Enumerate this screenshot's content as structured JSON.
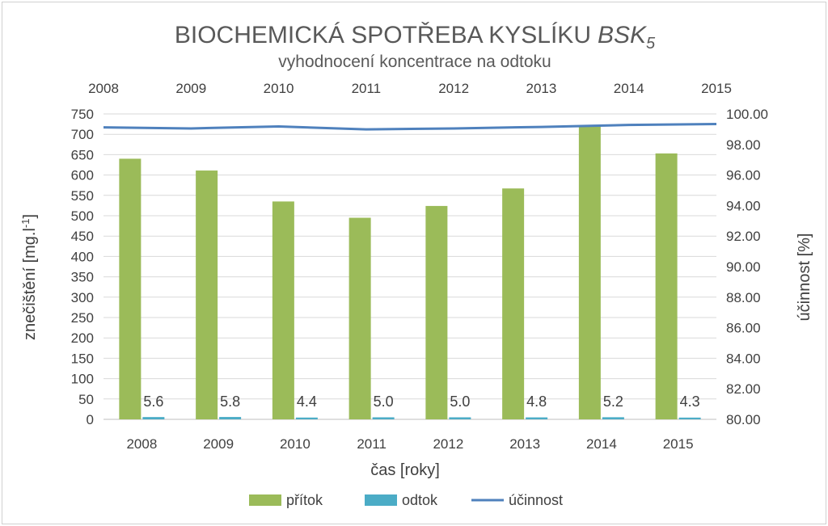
{
  "chart_data": {
    "type": "bar",
    "title": "BIOCHEMICKÁ SPOTŘEBA KYSLÍKU",
    "title_italic": "BSK",
    "title_subscript": "5",
    "subtitle": "vyhodnocení koncentrace na odtoku",
    "categories": [
      "2008",
      "2009",
      "2010",
      "2011",
      "2012",
      "2013",
      "2014",
      "2015"
    ],
    "top_axis_labels": [
      "2008",
      "2009",
      "2010",
      "2011",
      "2012",
      "2013",
      "2014",
      "2015"
    ],
    "series": [
      {
        "name": "přítok",
        "type": "bar",
        "axis": "left",
        "color": "#9bbb59",
        "values": [
          640,
          611,
          535,
          495,
          524,
          567,
          722,
          653
        ]
      },
      {
        "name": "odtok",
        "type": "bar",
        "axis": "left",
        "color": "#4bacc6",
        "values": [
          5.6,
          5.8,
          4.4,
          5.0,
          5.0,
          4.8,
          5.2,
          4.3
        ],
        "data_labels": [
          "5.6",
          "5.8",
          "4.4",
          "5.0",
          "5.0",
          "4.8",
          "5.2",
          "4.3"
        ]
      },
      {
        "name": "účinnost",
        "type": "line",
        "axis": "right",
        "color": "#4f81bd",
        "x_top": [
          2008,
          2009,
          2010,
          2011,
          2012,
          2013,
          2014,
          2015
        ],
        "values": [
          99.12,
          99.05,
          99.18,
          98.99,
          99.05,
          99.15,
          99.28,
          99.34
        ]
      }
    ],
    "y_left": {
      "label": "znečištění [mg.l",
      "label_sup": "-1",
      "label_end": "]",
      "ylim": [
        0,
        750
      ],
      "ticks": [
        "0",
        "50",
        "100",
        "150",
        "200",
        "250",
        "300",
        "350",
        "400",
        "450",
        "500",
        "550",
        "600",
        "650",
        "700",
        "750"
      ]
    },
    "y_right": {
      "label": "účinnost [%]",
      "ylim": [
        80,
        100
      ],
      "ticks": [
        "80.00",
        "82.00",
        "84.00",
        "86.00",
        "88.00",
        "90.00",
        "92.00",
        "94.00",
        "96.00",
        "98.00",
        "100.00"
      ]
    },
    "xlabel": "čas [roky]",
    "grid": true,
    "legend": {
      "position": "bottom",
      "entries": [
        "přítok",
        "odtok",
        "účinnost"
      ]
    }
  }
}
